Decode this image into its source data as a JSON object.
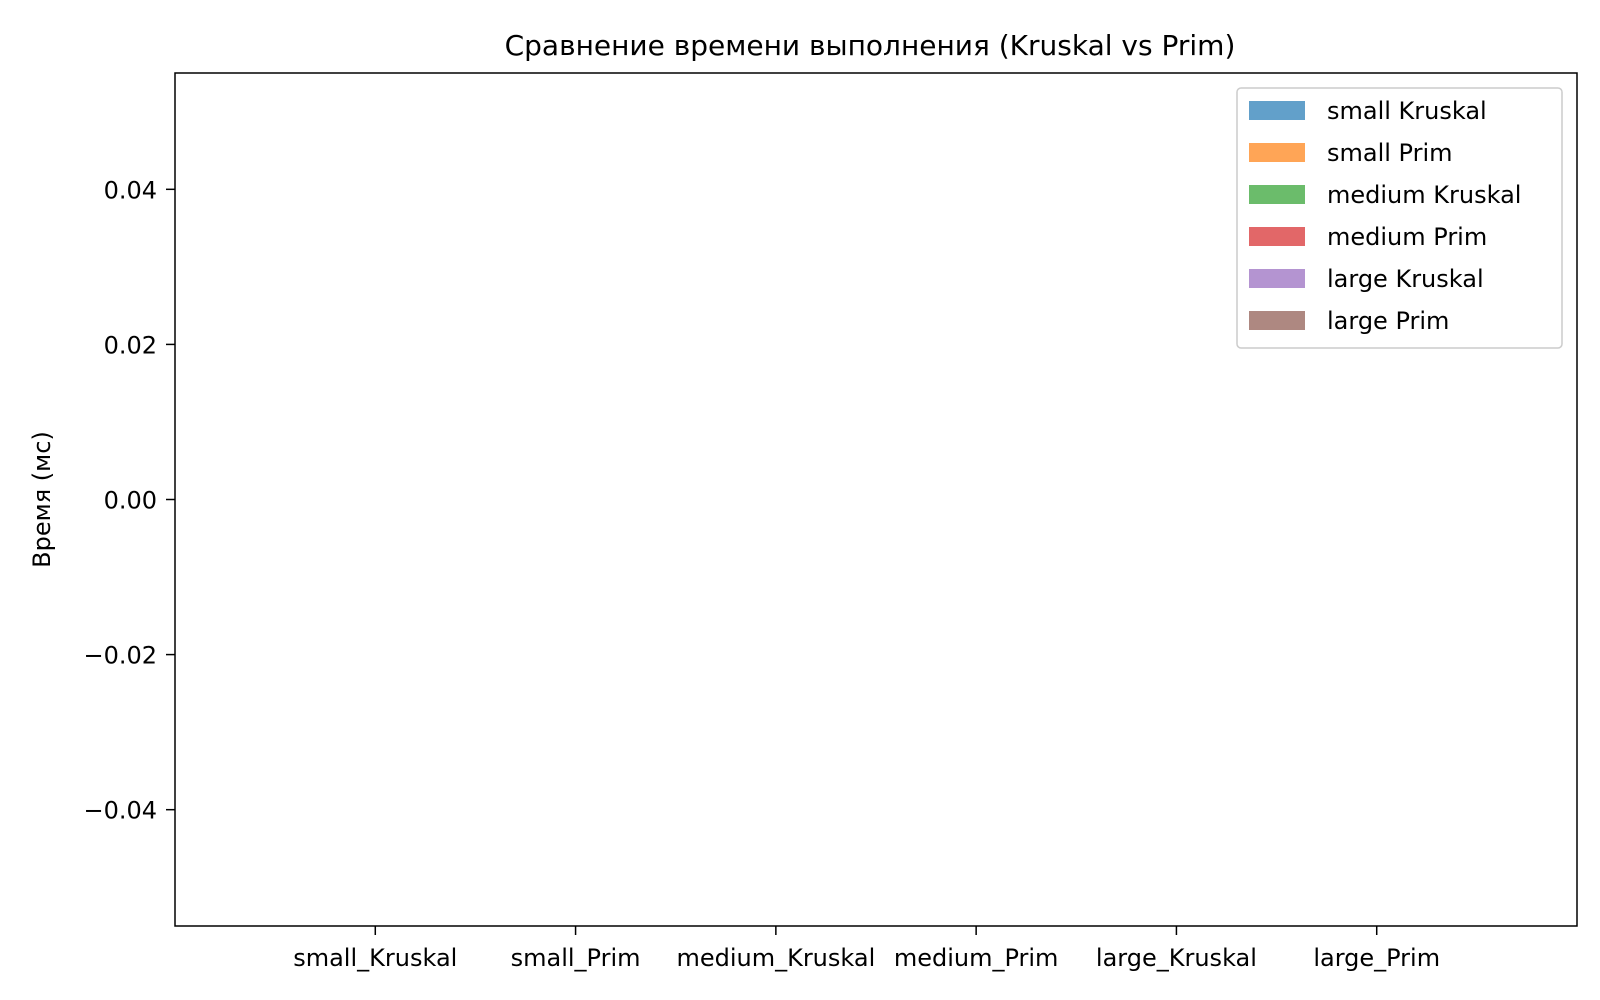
{
  "chart_data": {
    "type": "bar",
    "title": "Сравнение времени выполнения (Kruskal vs Prim)",
    "xlabel": "",
    "ylabel": "Время (мс)",
    "categories": [
      "small_Kruskal",
      "small_Prim",
      "medium_Kruskal",
      "medium_Prim",
      "large_Kruskal",
      "large_Prim"
    ],
    "series": [
      {
        "name": "small Kruskal",
        "color": "#1f77b4",
        "values": [
          0,
          null,
          null,
          null,
          null,
          null
        ]
      },
      {
        "name": "small Prim",
        "color": "#ff7f0e",
        "values": [
          null,
          0,
          null,
          null,
          null,
          null
        ]
      },
      {
        "name": "medium Kruskal",
        "color": "#2ca02c",
        "values": [
          null,
          null,
          0,
          null,
          null,
          null
        ]
      },
      {
        "name": "medium Prim",
        "color": "#d62728",
        "values": [
          null,
          null,
          null,
          0,
          null,
          null
        ]
      },
      {
        "name": "large Kruskal",
        "color": "#9467bd",
        "values": [
          null,
          null,
          null,
          null,
          0,
          null
        ]
      },
      {
        "name": "large Prim",
        "color": "#8c564b",
        "values": [
          null,
          null,
          null,
          null,
          null,
          0
        ]
      }
    ],
    "ylim": [
      -0.055,
      0.055
    ],
    "yticks": [
      -0.04,
      -0.02,
      0.0,
      0.02,
      0.04
    ],
    "ytick_labels": [
      "−0.04",
      "−0.02",
      "0.00",
      "0.02",
      "0.04"
    ],
    "grid": false,
    "legend_position": "top-right"
  }
}
